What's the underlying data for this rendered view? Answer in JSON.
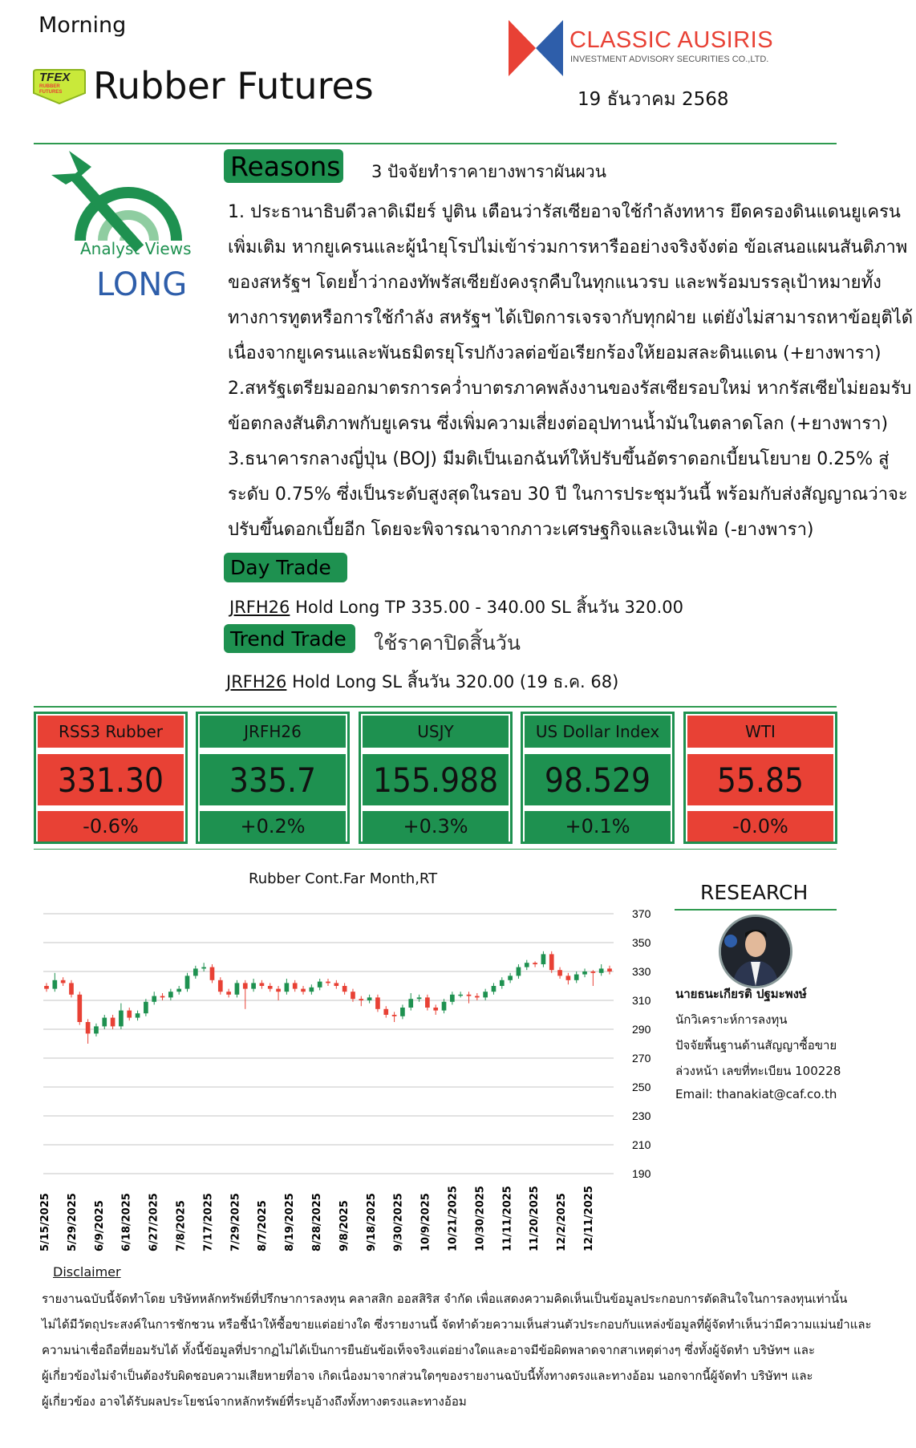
{
  "header": {
    "edition": "Morning",
    "tfex_logo_text": "TFEX RUBBER FUTURES",
    "title": "Rubber Futures",
    "company_name": "CLASSIC AUSIRIS",
    "company_sub": "INVESTMENT ADVISORY SECURITIES CO.,LTD.",
    "date": "19 ธันวาคม 2568",
    "colors": {
      "green": "#1e9150",
      "red": "#e84135",
      "blue": "#2e5eaa"
    }
  },
  "analyst_view": {
    "label": "Analyst Views",
    "stance": "LONG"
  },
  "reasons": {
    "badge": "Reasons",
    "subtitle": "3 ปัจจัยทำราคายางพาราผันผวน",
    "lines": [
      "1. ประธานาธิบดีวลาดิเมียร์ ปูติน เตือนว่ารัสเซียอาจใช้กำลังทหาร ยึดครองดินแดนยูเครน",
      "เพิ่มเติม หากยูเครนและผู้นำยุโรปไม่เข้าร่วมการหารืออย่างจริงจังต่อ ข้อเสนอแผนสันติภาพ",
      "ของสหรัฐฯ โดยย้ำว่ากองทัพรัสเซียยังคงรุกคืบในทุกแนวรบ และพร้อมบรรลุเป้าหมายทั้ง",
      "ทางการทูตหรือการใช้กำลัง สหรัฐฯ ได้เปิดการเจรจากับทุกฝ่าย แต่ยังไม่สามารถหาข้อยุติได้",
      "เนื่องจากยูเครนและพันธมิตรยุโรปกังวลต่อข้อเรียกร้องให้ยอมสละดินแดน (+ยางพารา)",
      "2.สหรัฐเตรียมออกมาตรการคว่ำบาตรภาคพลังงานของรัสเซียรอบใหม่ หากรัสเซียไม่ยอมรับ",
      "ข้อตกลงสันติภาพกับยูเครน ซึ่งเพิ่มความเสี่ยงต่ออุปทานน้ำมันในตลาดโลก (+ยางพารา)",
      "3.ธนาคารกลางญี่ปุ่น (BOJ) มีมติเป็นเอกฉันท์ให้ปรับขึ้นอัตราดอกเบี้ยนโยบาย 0.25% สู่",
      "ระดับ 0.75% ซึ่งเป็นระดับสูงสุดในรอบ 30 ปี ในการประชุมวันนี้  พร้อมกับส่งสัญญาณว่าจะ",
      "ปรับขึ้นดอกเบี้ยอีก โดยจะพิจารณาจากภาวะเศรษฐกิจและเงินเฟ้อ (-ยางพารา)"
    ]
  },
  "day_trade": {
    "badge": "Day Trade",
    "symbol": "JRFH26",
    "text": "Hold Long TP 335.00 - 340.00 SL สิ้นวัน 320.00"
  },
  "trend_trade": {
    "badge": "Trend Trade",
    "note": "ใช้ราคาปิดสิ้นวัน",
    "symbol": "JRFH26",
    "text": "Hold Long SL สิ้นวัน 320.00 (19 ธ.ค. 68)"
  },
  "tickers": [
    {
      "name": "RSS3 Rubber",
      "value": "331.30",
      "change": "-0.6%",
      "color": "#e84135"
    },
    {
      "name": "JRFH26",
      "value": "335.7",
      "change": "+0.2%",
      "color": "#1e9150"
    },
    {
      "name": "USJY",
      "value": "155.988",
      "change": "+0.3%",
      "color": "#1e9150"
    },
    {
      "name": "US Dollar Index",
      "value": "98.529",
      "change": "+0.1%",
      "color": "#1e9150"
    },
    {
      "name": "WTI",
      "value": "55.85",
      "change": "-0.0%",
      "color": "#e84135"
    }
  ],
  "chart_data": {
    "type": "candlestick",
    "title": "Rubber Cont.Far Month,RT",
    "ylim": [
      190,
      370
    ],
    "yticks": [
      370,
      350,
      330,
      310,
      290,
      270,
      250,
      230,
      210,
      190
    ],
    "xticks": [
      "5/15/2025",
      "5/29/2025",
      "6/9/2025",
      "6/18/2025",
      "6/27/2025",
      "7/8/2025",
      "7/17/2025",
      "7/29/2025",
      "8/7/2025",
      "8/19/2025",
      "8/28/2025",
      "9/8/2025",
      "9/18/2025",
      "9/30/2025",
      "10/9/2025",
      "10/21/2025",
      "10/30/2025",
      "11/11/2025",
      "11/20/2025",
      "12/2/2025",
      "12/11/2025"
    ],
    "grid": true,
    "axis_position": "right",
    "up_color": "#1e9150",
    "down_color": "#e84135",
    "ohlc": [
      [
        320,
        322,
        316,
        318
      ],
      [
        318,
        329,
        316,
        324
      ],
      [
        324,
        326,
        320,
        322
      ],
      [
        322,
        324,
        312,
        314
      ],
      [
        314,
        316,
        293,
        295
      ],
      [
        295,
        297,
        280,
        287
      ],
      [
        287,
        294,
        285,
        292
      ],
      [
        292,
        300,
        290,
        298
      ],
      [
        298,
        300,
        290,
        292
      ],
      [
        292,
        308,
        290,
        303
      ],
      [
        303,
        305,
        296,
        298
      ],
      [
        298,
        303,
        296,
        301
      ],
      [
        301,
        311,
        299,
        309
      ],
      [
        309,
        316,
        307,
        313
      ],
      [
        313,
        315,
        310,
        312
      ],
      [
        312,
        318,
        310,
        316
      ],
      [
        316,
        320,
        314,
        318
      ],
      [
        318,
        329,
        316,
        327
      ],
      [
        327,
        334,
        325,
        332
      ],
      [
        332,
        336,
        330,
        333
      ],
      [
        333,
        335,
        322,
        324
      ],
      [
        324,
        326,
        314,
        316
      ],
      [
        316,
        318,
        312,
        314
      ],
      [
        314,
        324,
        312,
        322
      ],
      [
        322,
        324,
        304,
        318
      ],
      [
        318,
        325,
        316,
        322
      ],
      [
        322,
        324,
        318,
        320
      ],
      [
        320,
        322,
        316,
        318
      ],
      [
        318,
        320,
        310,
        316
      ],
      [
        316,
        325,
        314,
        322
      ],
      [
        322,
        324,
        316,
        318
      ],
      [
        318,
        320,
        314,
        316
      ],
      [
        316,
        321,
        314,
        319
      ],
      [
        319,
        325,
        317,
        323
      ],
      [
        323,
        325,
        320,
        322
      ],
      [
        322,
        324,
        318,
        320
      ],
      [
        320,
        322,
        314,
        316
      ],
      [
        316,
        318,
        309,
        311
      ],
      [
        311,
        313,
        306,
        310
      ],
      [
        310,
        314,
        308,
        312
      ],
      [
        312,
        314,
        302,
        304
      ],
      [
        304,
        306,
        298,
        300
      ],
      [
        300,
        302,
        295,
        299
      ],
      [
        299,
        307,
        297,
        305
      ],
      [
        305,
        315,
        303,
        311
      ],
      [
        311,
        314,
        309,
        312
      ],
      [
        312,
        314,
        303,
        305
      ],
      [
        305,
        307,
        300,
        303
      ],
      [
        303,
        311,
        301,
        309
      ],
      [
        309,
        316,
        307,
        314
      ],
      [
        314,
        316,
        312,
        314
      ],
      [
        314,
        316,
        308,
        313
      ],
      [
        313,
        315,
        310,
        312
      ],
      [
        312,
        318,
        310,
        316
      ],
      [
        316,
        322,
        314,
        320
      ],
      [
        320,
        326,
        318,
        324
      ],
      [
        324,
        329,
        322,
        327
      ],
      [
        327,
        335,
        325,
        333
      ],
      [
        333,
        338,
        331,
        336
      ],
      [
        336,
        337,
        333,
        335
      ],
      [
        335,
        344,
        333,
        342
      ],
      [
        342,
        344,
        329,
        331
      ],
      [
        331,
        333,
        325,
        327
      ],
      [
        327,
        329,
        321,
        324
      ],
      [
        324,
        330,
        322,
        328
      ],
      [
        328,
        332,
        326,
        330
      ],
      [
        330,
        331,
        320,
        329
      ],
      [
        329,
        335,
        327,
        332
      ],
      [
        332,
        334,
        328,
        330
      ]
    ]
  },
  "research": {
    "heading": "RESEARCH",
    "name": "นายธนะเกียรติ ปฐมะพงษ์",
    "lines": [
      "นักวิเคราะห์การลงทุน",
      "ปัจจัยพื้นฐานด้านสัญญาซื้อขาย",
      "ล่วงหน้า เลขที่ทะเบียน 100228",
      "Email: thanakiat@caf.co.th"
    ]
  },
  "disclaimer": {
    "title": "Disclaimer",
    "lines": [
      "รายงานฉบับนี้จัดทำโดย บริษัทหลักทรัพย์ที่ปรึกษาการลงทุน คลาสสิก ออสสิริส จำกัด เพื่อแสดงความคิดเห็นเป็นข้อมูลประกอบการตัดสินใจในการลงทุนเท่านั้น",
      "ไม่ได้มีวัตถุประสงค์ในการชักชวน หรือชี้นำให้ซื้อขายแต่อย่างใด ซึ่งรายงานนี้ จัดทำด้วยความเห็นส่วนตัวประกอบกับแหล่งข้อมูลที่ผู้จัดทำเห็นว่ามีความแม่นยำและ",
      "ความน่าเชื่อถือที่ยอมรับได้ ทั้งนี้ข้อมูลที่ปรากฏไม่ได้เป็นการยืนยันข้อเท็จจริงแต่อย่างใดและอาจมีข้อผิดพลาดจากสาเหตุต่างๆ ซึ่งทั้งผู้จัดทำ บริษัทฯ และ",
      "ผู้เกี่ยวข้องไม่จำเป็นต้องรับผิดชอบความเสียหายที่อาจ เกิดเนื่องมาจากส่วนใดๆของรายงานฉบับนี้ทั้งทางตรงและทางอ้อม นอกจากนี้ผู้จัดทำ บริษัทฯ และ",
      "ผู้เกี่ยวข้อง อาจได้รับผลประโยชน์จากหลักทรัพย์ที่ระบุอ้างถึงทั้งทางตรงและทางอ้อม"
    ]
  }
}
